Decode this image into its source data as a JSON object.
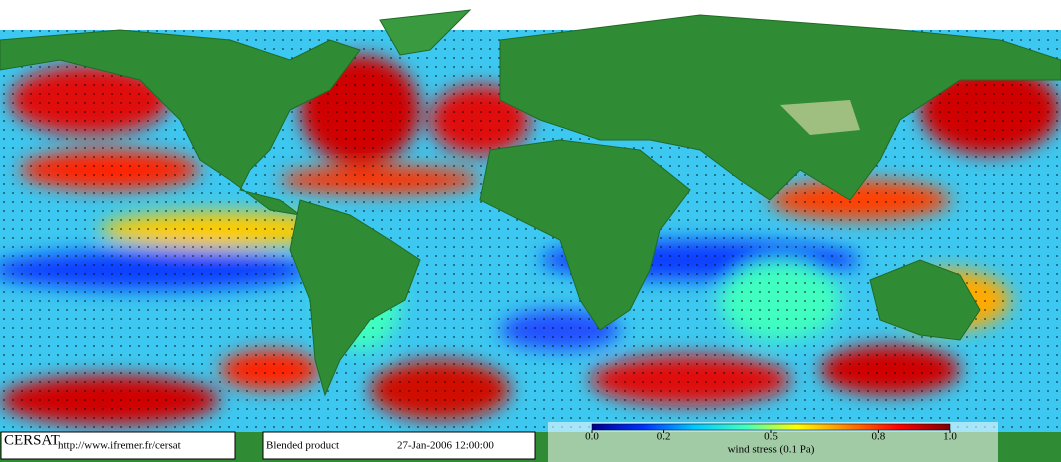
{
  "footer": {
    "logo": "CERSAT",
    "url": "http://www.ifremer.fr/cersat",
    "product": "Blended product",
    "date": "27-Jan-2006 12:00:00"
  },
  "colorbar": {
    "label": "wind stress (0.1 Pa)",
    "range": [
      0,
      1
    ],
    "ticks": [
      {
        "value": 0,
        "label": "0.0"
      },
      0.2,
      0.5,
      0.8,
      {
        "value": 1,
        "label": "1.0"
      }
    ],
    "colors": [
      "#000090",
      "#0030ff",
      "#00c8ff",
      "#40ffc0",
      "#ffff00",
      "#ff8000",
      "#ff0000",
      "#800000"
    ]
  }
}
